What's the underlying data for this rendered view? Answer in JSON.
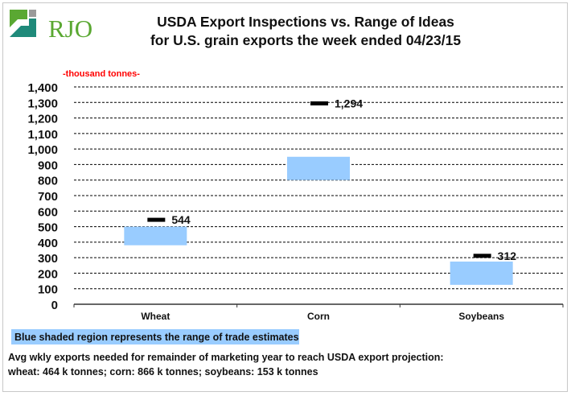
{
  "logo": {
    "text": "RJO"
  },
  "title": {
    "line1": "USDA Export Inspections vs. Range of Ideas",
    "line2": "for U.S. grain exports the week ended 04/23/15"
  },
  "chart_data": {
    "type": "range-bar",
    "title": "USDA Export Inspections vs. Range of Ideas for U.S. grain exports the week ended 04/23/15",
    "unit_label": "-thousand tonnes-",
    "ylim": [
      0,
      1400
    ],
    "y_ticks": [
      0,
      100,
      200,
      300,
      400,
      500,
      600,
      700,
      800,
      900,
      1000,
      1100,
      1200,
      1300,
      1400
    ],
    "y_tick_labels": [
      "0",
      "100",
      "200",
      "300",
      "400",
      "500",
      "600",
      "700",
      "800",
      "900",
      "1,000",
      "1,100",
      "1,200",
      "1,300",
      "1,400"
    ],
    "grid": true,
    "categories": [
      "Wheat",
      "Corn",
      "Soybeans"
    ],
    "series": [
      {
        "name": "Range of trade estimates",
        "low": [
          380,
          800,
          125
        ],
        "high": [
          500,
          950,
          275
        ],
        "color": "#99ccff"
      },
      {
        "name": "USDA export inspections",
        "values": [
          544,
          1294,
          312
        ],
        "labels": [
          "544",
          "1,294",
          "312"
        ],
        "color": "#000000"
      }
    ]
  },
  "legend": {
    "text": "Blue shaded region represents the range of trade estimates"
  },
  "note": {
    "line1": "Avg wkly exports needed for remainder of marketing year to reach USDA export projection:",
    "line2": "wheat: 464 k tonnes; corn: 866 k tonnes; soybeans: 153 k tonnes"
  }
}
